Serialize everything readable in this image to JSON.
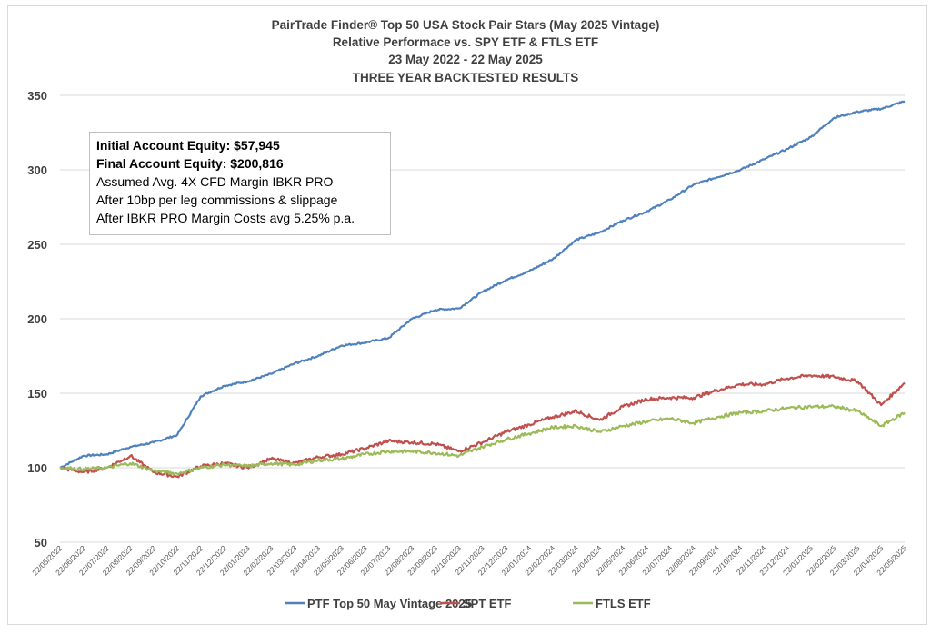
{
  "chart_data": {
    "type": "line",
    "title": [
      "PairTrade Finder® Top 50 USA Stock Pair Stars (May 2025 Vintage)",
      "Relative Performace vs. SPY ETF & FTLS ETF",
      "23 May 2022 - 22 May 2025",
      "THREE YEAR BACKTESTED RESULTS"
    ],
    "ylim": [
      50,
      350
    ],
    "yticks": [
      "50",
      "100",
      "150",
      "200",
      "250",
      "300",
      "350"
    ],
    "ytick_values": [
      50,
      100,
      150,
      200,
      250,
      300,
      350
    ],
    "categories": [
      "22/05/2022",
      "22/06/2022",
      "22/07/2022",
      "22/08/2022",
      "22/09/2022",
      "22/10/2022",
      "22/11/2022",
      "22/12/2022",
      "22/01/2023",
      "22/02/2023",
      "22/03/2023",
      "22/04/2023",
      "22/05/2023",
      "22/06/2023",
      "22/07/2023",
      "22/08/2023",
      "22/09/2023",
      "22/10/2023",
      "22/11/2023",
      "22/12/2023",
      "22/01/2024",
      "22/02/2024",
      "22/03/2024",
      "22/04/2024",
      "22/05/2024",
      "22/06/2024",
      "22/07/2024",
      "22/08/2024",
      "22/09/2024",
      "22/10/2024",
      "22/11/2024",
      "22/12/2024",
      "22/01/2025",
      "22/02/2025",
      "22/03/2025",
      "22/04/2025",
      "22/05/2025"
    ],
    "series": [
      {
        "name": "PTF Top 50 May Vintage 2025",
        "color": "#4f81bd",
        "values": [
          100,
          108,
          109,
          114,
          117,
          122,
          148,
          155,
          158,
          163,
          170,
          175,
          182,
          184,
          187,
          200,
          206,
          207,
          218,
          226,
          232,
          240,
          253,
          258,
          266,
          272,
          280,
          290,
          295,
          300,
          307,
          314,
          322,
          335,
          339,
          341,
          346
        ]
      },
      {
        "name": "SPT ETF",
        "color": "#c0504d",
        "values": [
          100,
          97,
          100,
          108,
          97,
          94,
          101,
          103,
          100,
          106,
          103,
          107,
          109,
          113,
          118,
          117,
          116,
          111,
          117,
          124,
          129,
          134,
          138,
          132,
          141,
          146,
          147,
          147,
          152,
          156,
          156,
          160,
          162,
          161,
          158,
          142,
          157
        ]
      },
      {
        "name": "FTLS ETF",
        "color": "#9bbb59",
        "values": [
          100,
          99,
          100,
          103,
          98,
          96,
          100,
          102,
          101,
          103,
          102,
          105,
          106,
          109,
          111,
          111,
          110,
          108,
          114,
          119,
          123,
          127,
          128,
          124,
          128,
          131,
          133,
          130,
          134,
          137,
          138,
          140,
          141,
          141,
          138,
          128,
          137
        ]
      }
    ],
    "legend_position": "bottom",
    "grid": true
  },
  "annotation": {
    "lines": [
      "Initial Account Equity: $57,945",
      "Final Account Equity: $200,816",
      "Assumed Avg. 4X CFD Margin IBKR PRO",
      "After 10bp per leg commissions & slippage",
      "After IBKR PRO Margin Costs avg 5.25% p.a."
    ]
  }
}
